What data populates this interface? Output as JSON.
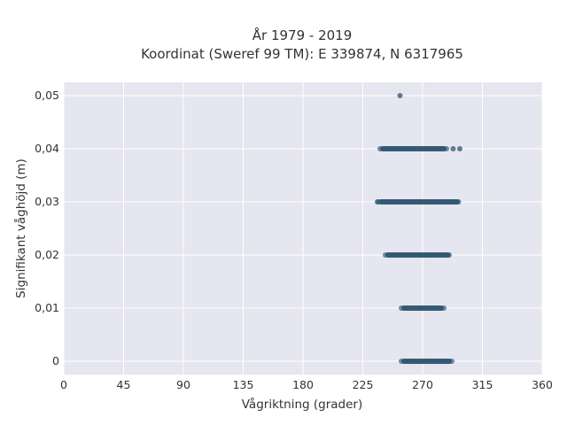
{
  "chart_data": {
    "type": "scatter",
    "title_line1": "År 1979 - 2019",
    "title_line2": "Koordinat (Sweref 99 TM): E 339874, N 6317965",
    "xlabel": "Vågriktning (grader)",
    "ylabel": "Signifikant våghöjd (m)",
    "xlim": [
      0,
      360
    ],
    "ylim": [
      -0.0025,
      0.0525
    ],
    "x_ticks": [
      0,
      45,
      90,
      135,
      180,
      225,
      270,
      315,
      360
    ],
    "x_tick_labels": [
      "0",
      "45",
      "90",
      "135",
      "180",
      "225",
      "270",
      "315",
      "360"
    ],
    "y_ticks": [
      0,
      0.01,
      0.02,
      0.03,
      0.04,
      0.05
    ],
    "y_tick_labels": [
      "0",
      "0,01",
      "0,02",
      "0,03",
      "0,04",
      "0,05"
    ],
    "grid": true,
    "bands": [
      {
        "y": 0.0,
        "x_min": 254,
        "x_max": 292
      },
      {
        "y": 0.01,
        "x_min": 254,
        "x_max": 286
      },
      {
        "y": 0.02,
        "x_min": 242,
        "x_max": 291
      },
      {
        "y": 0.03,
        "x_min": 237,
        "x_max": 298
      },
      {
        "y": 0.04,
        "x_min": 238,
        "x_max": 288
      }
    ],
    "points": [
      {
        "x": 253,
        "y": 0.05
      },
      {
        "x": 293,
        "y": 0.04
      },
      {
        "x": 298,
        "y": 0.04
      },
      {
        "x": 236,
        "y": 0.03
      }
    ],
    "colors": {
      "plot_bg": "#e5e6ef",
      "grid": "#ffffff",
      "marker": "#2e5670",
      "text": "#333333"
    }
  }
}
